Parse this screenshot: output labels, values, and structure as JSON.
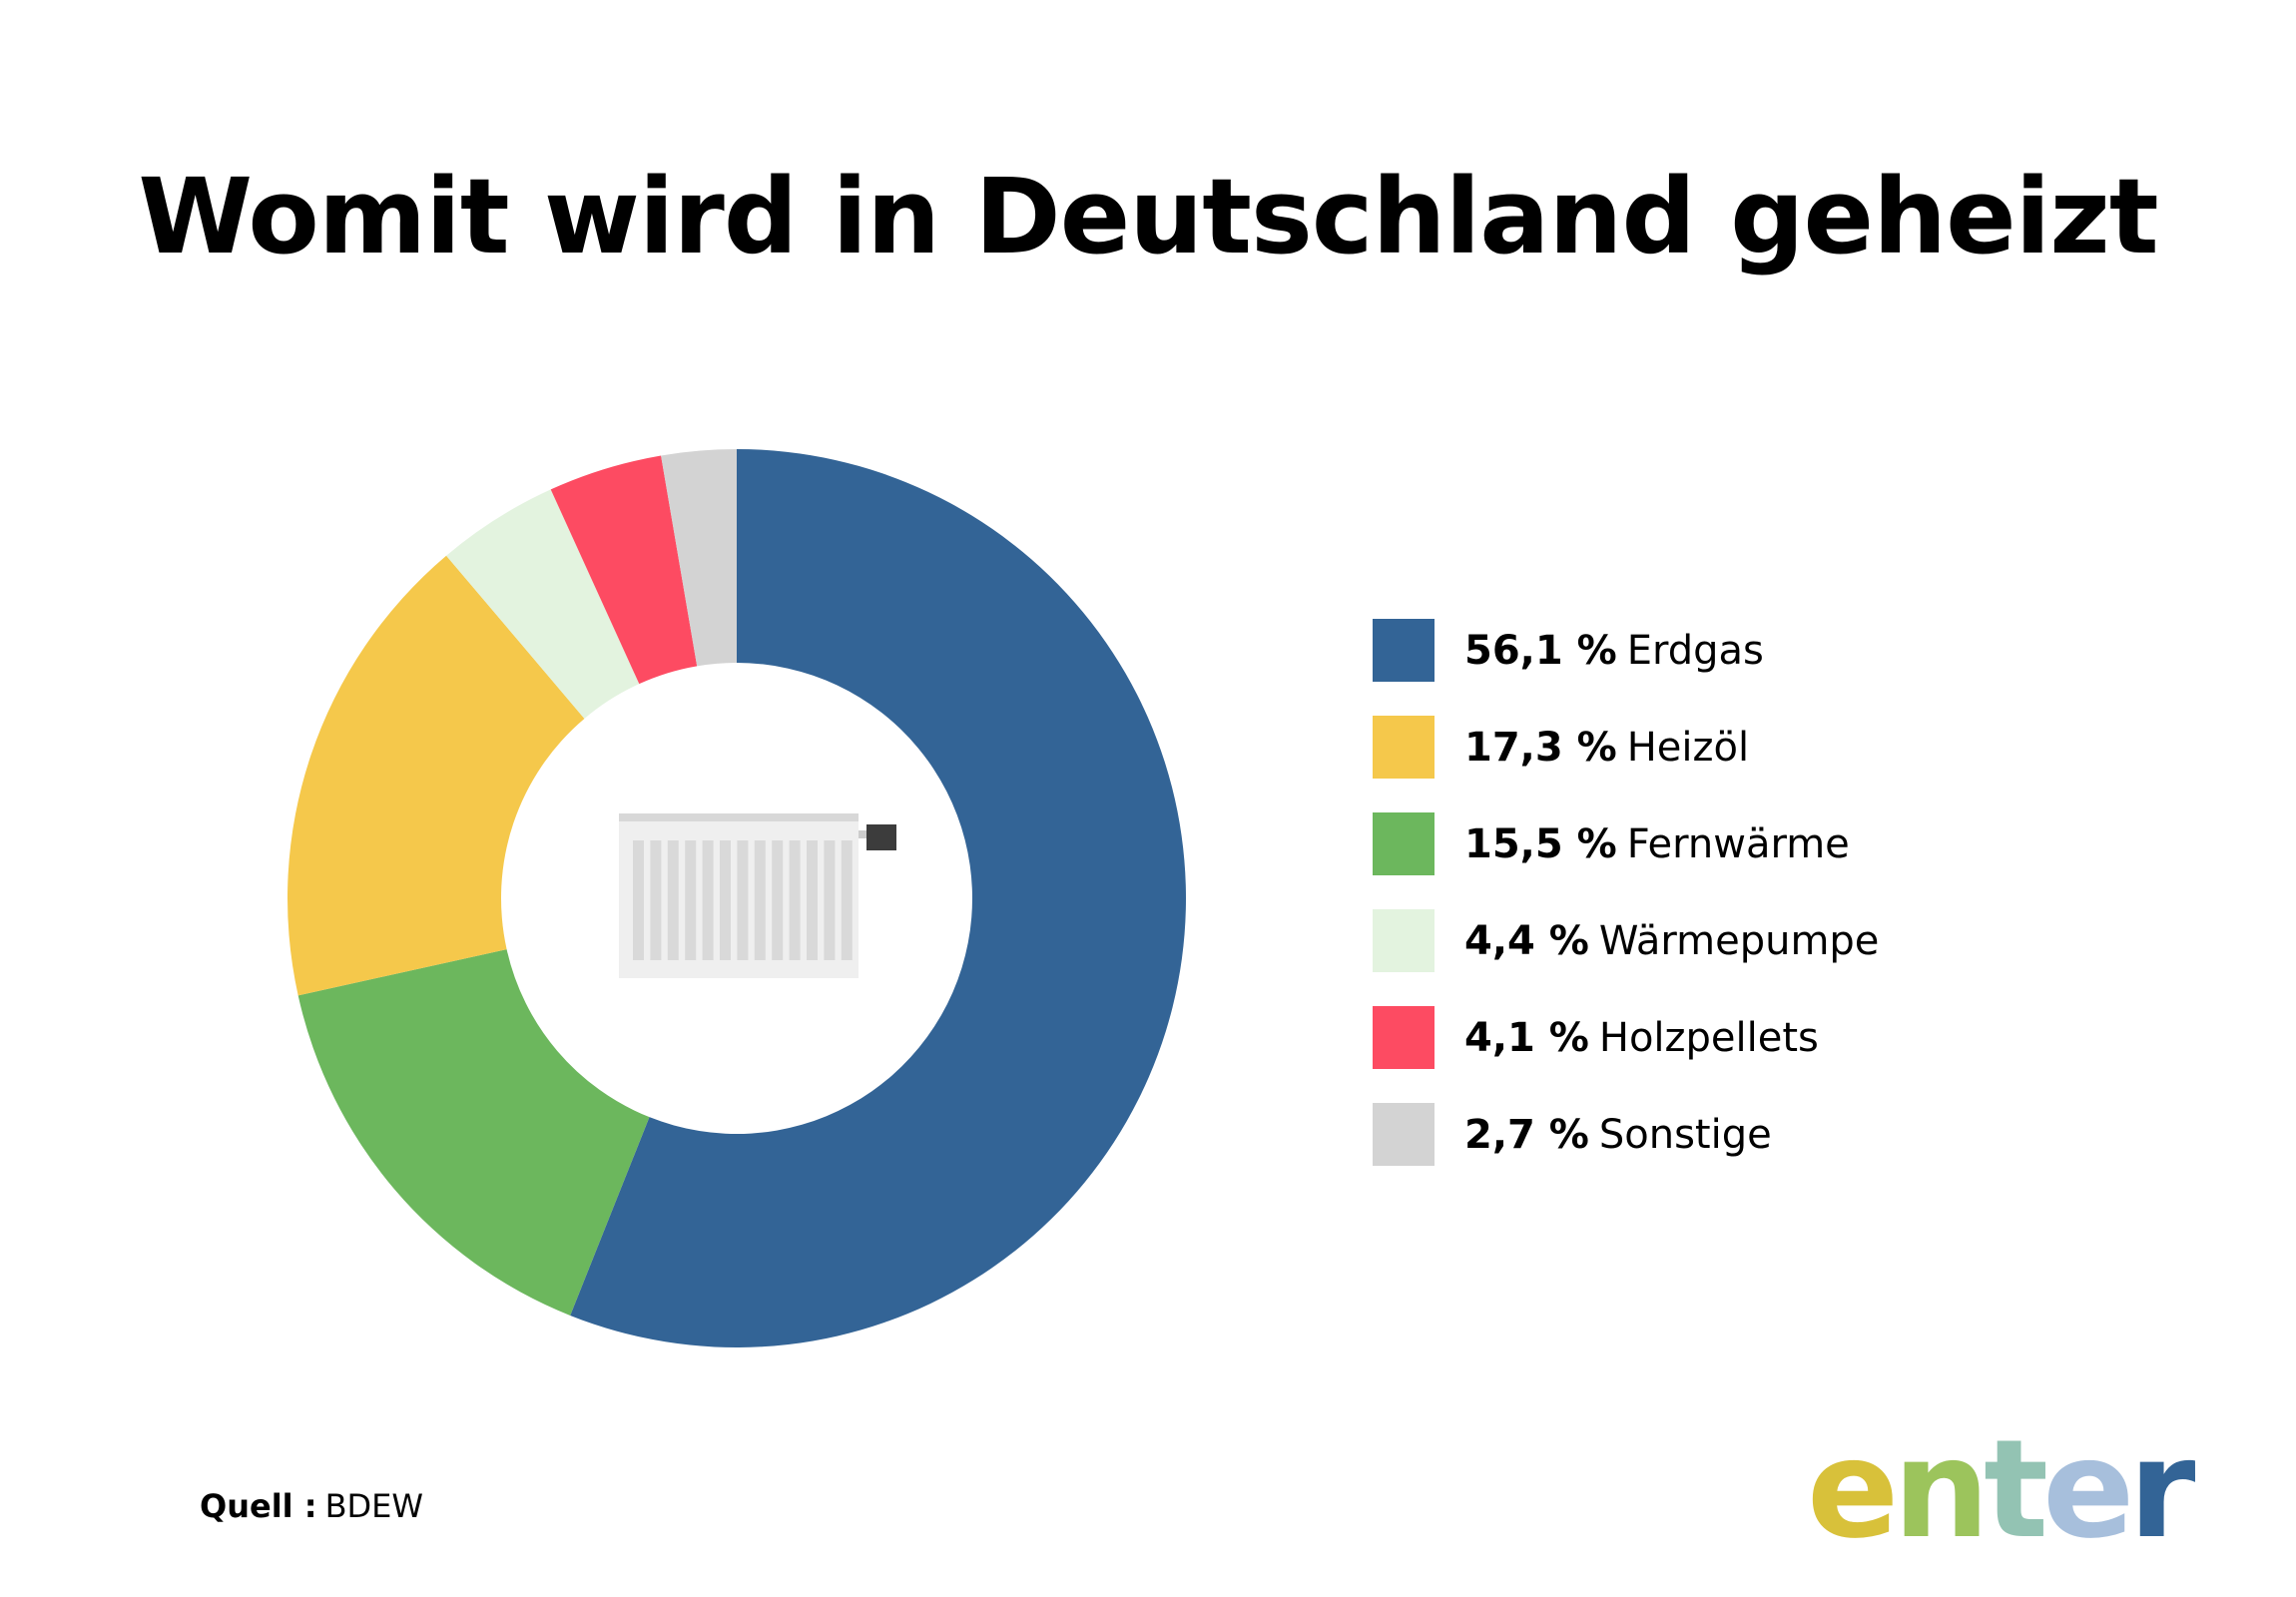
{
  "title": "Womit wird in Deutschland geheizt",
  "chart_data": {
    "type": "pie",
    "title": "Womit wird in Deutschland geheizt",
    "series": [
      {
        "name": "Erdgas",
        "value": 56.1,
        "label": "56,1 %",
        "color": "#336496"
      },
      {
        "name": "Fernwärme",
        "value": 15.5,
        "label": "15,5 %",
        "color": "#6cb75d"
      },
      {
        "name": "Heizöl",
        "value": 17.3,
        "label": "17,3 %",
        "color": "#f5c84b"
      },
      {
        "name": "Wärmepumpe",
        "value": 4.4,
        "label": "4,4 %",
        "color": "#e3f3df"
      },
      {
        "name": "Holzpellets",
        "value": 4.1,
        "label": "4,1 %",
        "color": "#fd4b62"
      },
      {
        "name": "Sonstige",
        "value": 2.7,
        "label": "2,7 %",
        "color": "#d3d3d3"
      }
    ],
    "legend_placement": "right",
    "center_icon": "radiator-icon"
  },
  "legend": [
    {
      "pct": "56,1 %",
      "name": "Erdgas",
      "color": "#336496"
    },
    {
      "pct": "17,3 %",
      "name": "Heizöl",
      "color": "#f5c84b"
    },
    {
      "pct": "15,5 %",
      "name": "Fernwärme",
      "color": "#6cb75d"
    },
    {
      "pct": "4,4 %",
      "name": "Wärmepumpe",
      "color": "#e3f3df"
    },
    {
      "pct": "4,1 %",
      "name": "Holzpellets",
      "color": "#fd4b62"
    },
    {
      "pct": "2,7 %",
      "name": "Sonstige",
      "color": "#d3d3d3"
    }
  ],
  "source": {
    "label": "Quell :",
    "value": "BDEW"
  },
  "logo": {
    "text": "enter",
    "letter_colors": [
      "#d8c13a",
      "#9cc45c",
      "#93c3b3",
      "#a7bfdc",
      "#336496"
    ]
  }
}
